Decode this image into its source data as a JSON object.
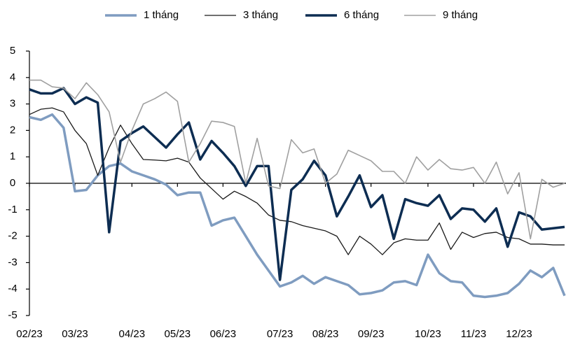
{
  "chart_data": {
    "type": "line",
    "categories": [
      "02/23",
      null,
      null,
      null,
      "03/23",
      null,
      null,
      null,
      null,
      "04/23",
      null,
      null,
      null,
      "05/23",
      null,
      null,
      null,
      "06/23",
      null,
      null,
      null,
      null,
      "07/23",
      null,
      null,
      null,
      "08/23",
      null,
      null,
      null,
      "09/23",
      null,
      null,
      null,
      null,
      "10/23",
      null,
      null,
      null,
      "11/23",
      null,
      null,
      null,
      "12/23",
      null,
      null,
      null,
      null
    ],
    "series": [
      {
        "name": "1 tháng",
        "color": "#7f9cc0",
        "width": 3.5,
        "values": [
          2.5,
          2.4,
          2.6,
          2.1,
          -0.3,
          -0.25,
          0.3,
          0.65,
          0.75,
          0.45,
          0.3,
          0.15,
          -0.05,
          -0.45,
          -0.35,
          -0.35,
          -1.6,
          -1.4,
          -1.3,
          -2.0,
          -2.7,
          -3.3,
          -3.9,
          -3.75,
          -3.5,
          -3.8,
          -3.55,
          -3.7,
          -3.85,
          -4.2,
          -4.15,
          -4.05,
          -3.75,
          -3.7,
          -3.85,
          -2.7,
          -3.4,
          -3.7,
          -3.75,
          -4.25,
          -4.3,
          -4.25,
          -4.15,
          -3.8,
          -3.3,
          -3.55,
          -3.2,
          -4.25
        ]
      },
      {
        "name": "3 tháng",
        "color": "#1a1a1a",
        "width": 1.3,
        "values": [
          2.6,
          2.8,
          2.85,
          2.7,
          2.0,
          1.5,
          0.3,
          1.35,
          2.2,
          1.5,
          0.9,
          0.88,
          0.85,
          0.95,
          0.8,
          0.2,
          -0.2,
          -0.6,
          -0.3,
          -0.5,
          -0.75,
          -1.2,
          -1.4,
          -1.45,
          -1.6,
          -1.7,
          -1.8,
          -2.0,
          -2.7,
          -2.0,
          -2.3,
          -2.7,
          -2.25,
          -2.1,
          -2.15,
          -2.15,
          -1.5,
          -2.5,
          -1.85,
          -2.05,
          -1.9,
          -1.85,
          -2.05,
          -2.1,
          -2.3,
          -2.3,
          -2.33,
          -2.33
        ]
      },
      {
        "name": "6 tháng",
        "color": "#0d2d52",
        "width": 3.5,
        "values": [
          3.55,
          3.4,
          3.4,
          3.6,
          3.0,
          3.25,
          3.05,
          -1.85,
          1.6,
          1.9,
          2.15,
          1.75,
          1.35,
          1.85,
          2.3,
          0.9,
          1.6,
          1.15,
          0.65,
          -0.1,
          0.65,
          0.65,
          -3.65,
          -0.25,
          0.15,
          0.85,
          0.3,
          -1.25,
          -0.5,
          0.3,
          -0.9,
          -0.45,
          -2.1,
          -0.6,
          -0.75,
          -0.85,
          -0.45,
          -1.35,
          -0.95,
          -1.0,
          -1.45,
          -0.95,
          -2.4,
          -1.1,
          -1.25,
          -1.75,
          -1.7,
          -1.65
        ]
      },
      {
        "name": "9 tháng",
        "color": "#a0a0a0",
        "width": 1.6,
        "values": [
          3.9,
          3.9,
          3.65,
          3.6,
          3.2,
          3.8,
          3.35,
          2.7,
          0.8,
          2.0,
          3.0,
          3.2,
          3.45,
          3.1,
          0.8,
          1.5,
          2.35,
          2.3,
          2.15,
          0.0,
          1.7,
          -0.1,
          -0.2,
          1.65,
          1.15,
          1.3,
          0.0,
          0.35,
          1.25,
          1.05,
          0.85,
          0.45,
          0.45,
          0.0,
          1.0,
          0.5,
          0.9,
          0.55,
          0.5,
          0.6,
          0.0,
          0.8,
          -0.4,
          0.4,
          -2.1,
          0.15,
          -0.15,
          0.0
        ]
      }
    ],
    "ylim": [
      -5,
      5
    ],
    "yticks": [
      -5,
      -4,
      -3,
      -2,
      -1,
      0,
      1,
      2,
      3,
      4,
      5
    ],
    "legend": "top"
  }
}
